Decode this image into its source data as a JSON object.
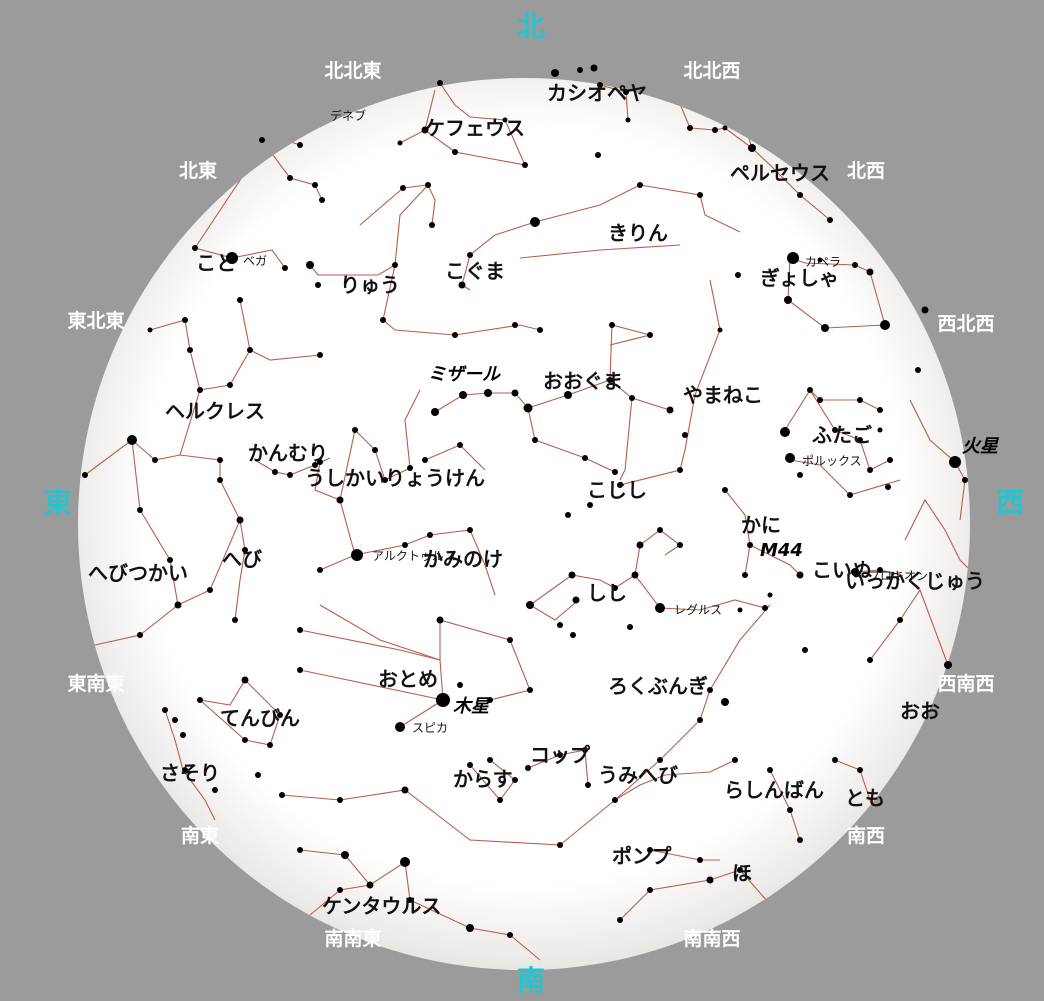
{
  "directions": {
    "north": "北",
    "south": "南",
    "east": "東",
    "west": "西",
    "nne": "北北東",
    "nnw": "北北西",
    "ne": "北東",
    "nw": "北西",
    "ene": "東北東",
    "wnw": "西北西",
    "ese": "東南東",
    "wsw": "西南西",
    "se": "南東",
    "sw": "南西",
    "sse": "南南東",
    "ssw": "南南西"
  },
  "constellations": {
    "cassiopeia": "カシオペヤ",
    "cepheus": "ケフェウス",
    "perseus": "ペルセウス",
    "camelopardalis": "きりん",
    "ursa_minor": "こぐま",
    "draco": "りゅう",
    "lyra": "こと",
    "auriga": "ぎょしゃ",
    "ursa_major": "おおぐま",
    "lynx": "やまねこ",
    "hercules": "ヘルクレス",
    "corona_borealis": "かんむり",
    "bootes": "うしかい",
    "canes_venatici": "りょうけん",
    "gemini": "ふたご",
    "leo_minor": "こじし",
    "cancer": "かに",
    "coma_berenices": "かみのけ",
    "serpens": "へび",
    "ophiuchus": "へびつかい",
    "leo": "しし",
    "canis_minor": "こいぬ",
    "monoceros": "いっかくじゅう",
    "virgo": "おとめ",
    "sextans": "ろくぶんぎ",
    "libra": "てんびん",
    "crater": "コップ",
    "hydra": "うみへび",
    "corvus": "からす",
    "pyxis": "らしんばん",
    "antlia": "ポンプ",
    "vela": "ほ",
    "centaurus": "ケンタウルス",
    "scorpius": "さそり",
    "orion": "おお",
    "canis_major": "とも"
  },
  "stars": {
    "deneb": "デネブ",
    "vega": "ベガ",
    "capella": "カペラ",
    "pollux": "ポルックス",
    "arcturus": "アルクトゥルス",
    "regulus": "レグルス",
    "spica": "スピカ",
    "procyon": "プロキオン"
  },
  "objects": {
    "mizar": "ミザール",
    "mars": "火星",
    "m44": "M44",
    "jupiter": "木星"
  },
  "colors": {
    "background": "#9b9b9b",
    "sky": "#ffffff",
    "constellation_line": "#b85d4a",
    "cardinal": "#27c4cf",
    "direction_label": "#ffffff",
    "star": "#000000"
  }
}
